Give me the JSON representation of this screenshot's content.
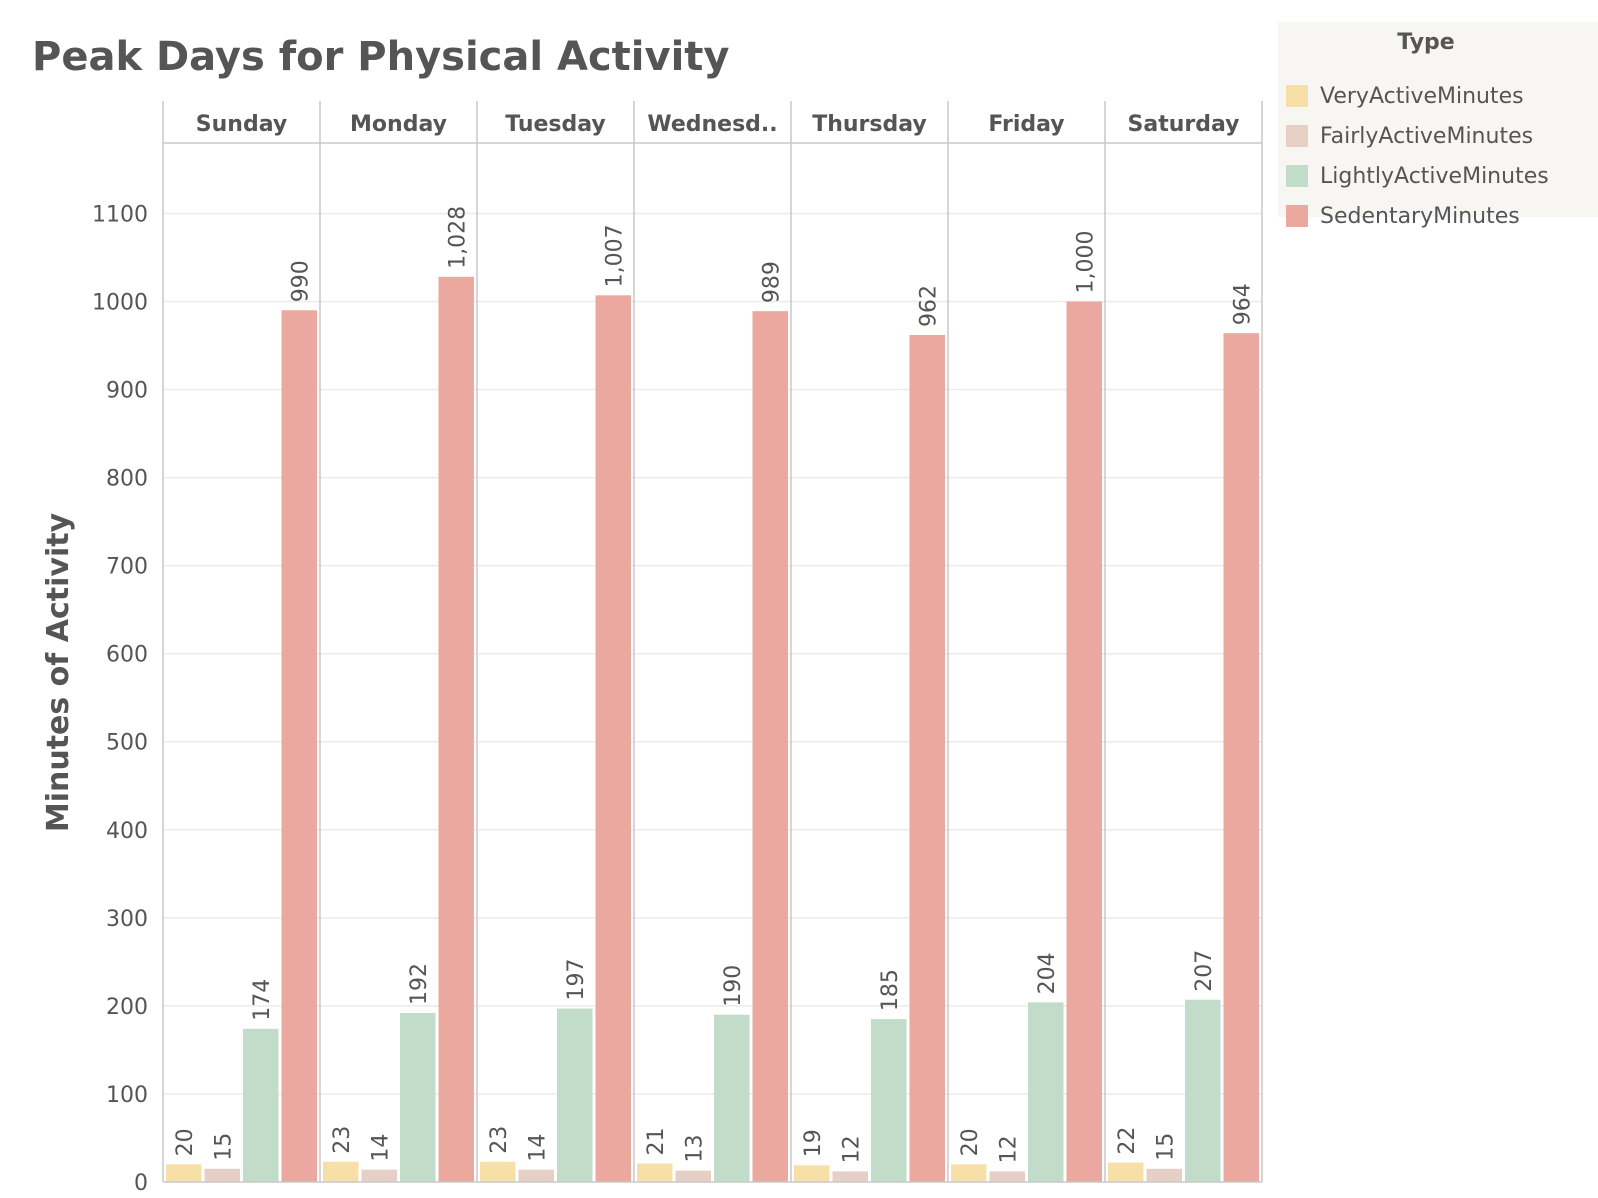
{
  "chart_data": {
    "type": "bar",
    "title": "Peak Days for Physical Activity",
    "ylabel": "Minutes of Activity",
    "xlabel": "",
    "categories": [
      "Sunday",
      "Monday",
      "Tuesday",
      "Wednesd..",
      "Thursday",
      "Friday",
      "Saturday"
    ],
    "legend_title": "Type",
    "legend_position": "top-right",
    "series": [
      {
        "name": "VeryActiveMinutes",
        "color": "#f7dfa8",
        "values": [
          20,
          23,
          23,
          21,
          19,
          20,
          22
        ],
        "labels": [
          "20",
          "23",
          "23",
          "21",
          "19",
          "20",
          "22"
        ]
      },
      {
        "name": "FairlyActiveMinutes",
        "color": "#e6cfc4",
        "values": [
          15,
          14,
          14,
          13,
          12,
          12,
          15
        ],
        "labels": [
          "15",
          "14",
          "14",
          "13",
          "12",
          "12",
          "15"
        ]
      },
      {
        "name": "LightlyActiveMinutes",
        "color": "#c1dcc9",
        "values": [
          174,
          192,
          197,
          190,
          185,
          204,
          207
        ],
        "labels": [
          "174",
          "192",
          "197",
          "190",
          "185",
          "204",
          "207"
        ]
      },
      {
        "name": "SedentaryMinutes",
        "color": "#eba89e",
        "values": [
          990,
          1028,
          1007,
          989,
          962,
          1000,
          964
        ],
        "labels": [
          "990",
          "1,028",
          "1,007",
          "989",
          "962",
          "1,000",
          "964"
        ]
      }
    ],
    "ylim": [
      0,
      1180
    ],
    "yticks": [
      0,
      100,
      200,
      300,
      400,
      500,
      600,
      700,
      800,
      900,
      1000,
      1100
    ],
    "grid": true
  }
}
